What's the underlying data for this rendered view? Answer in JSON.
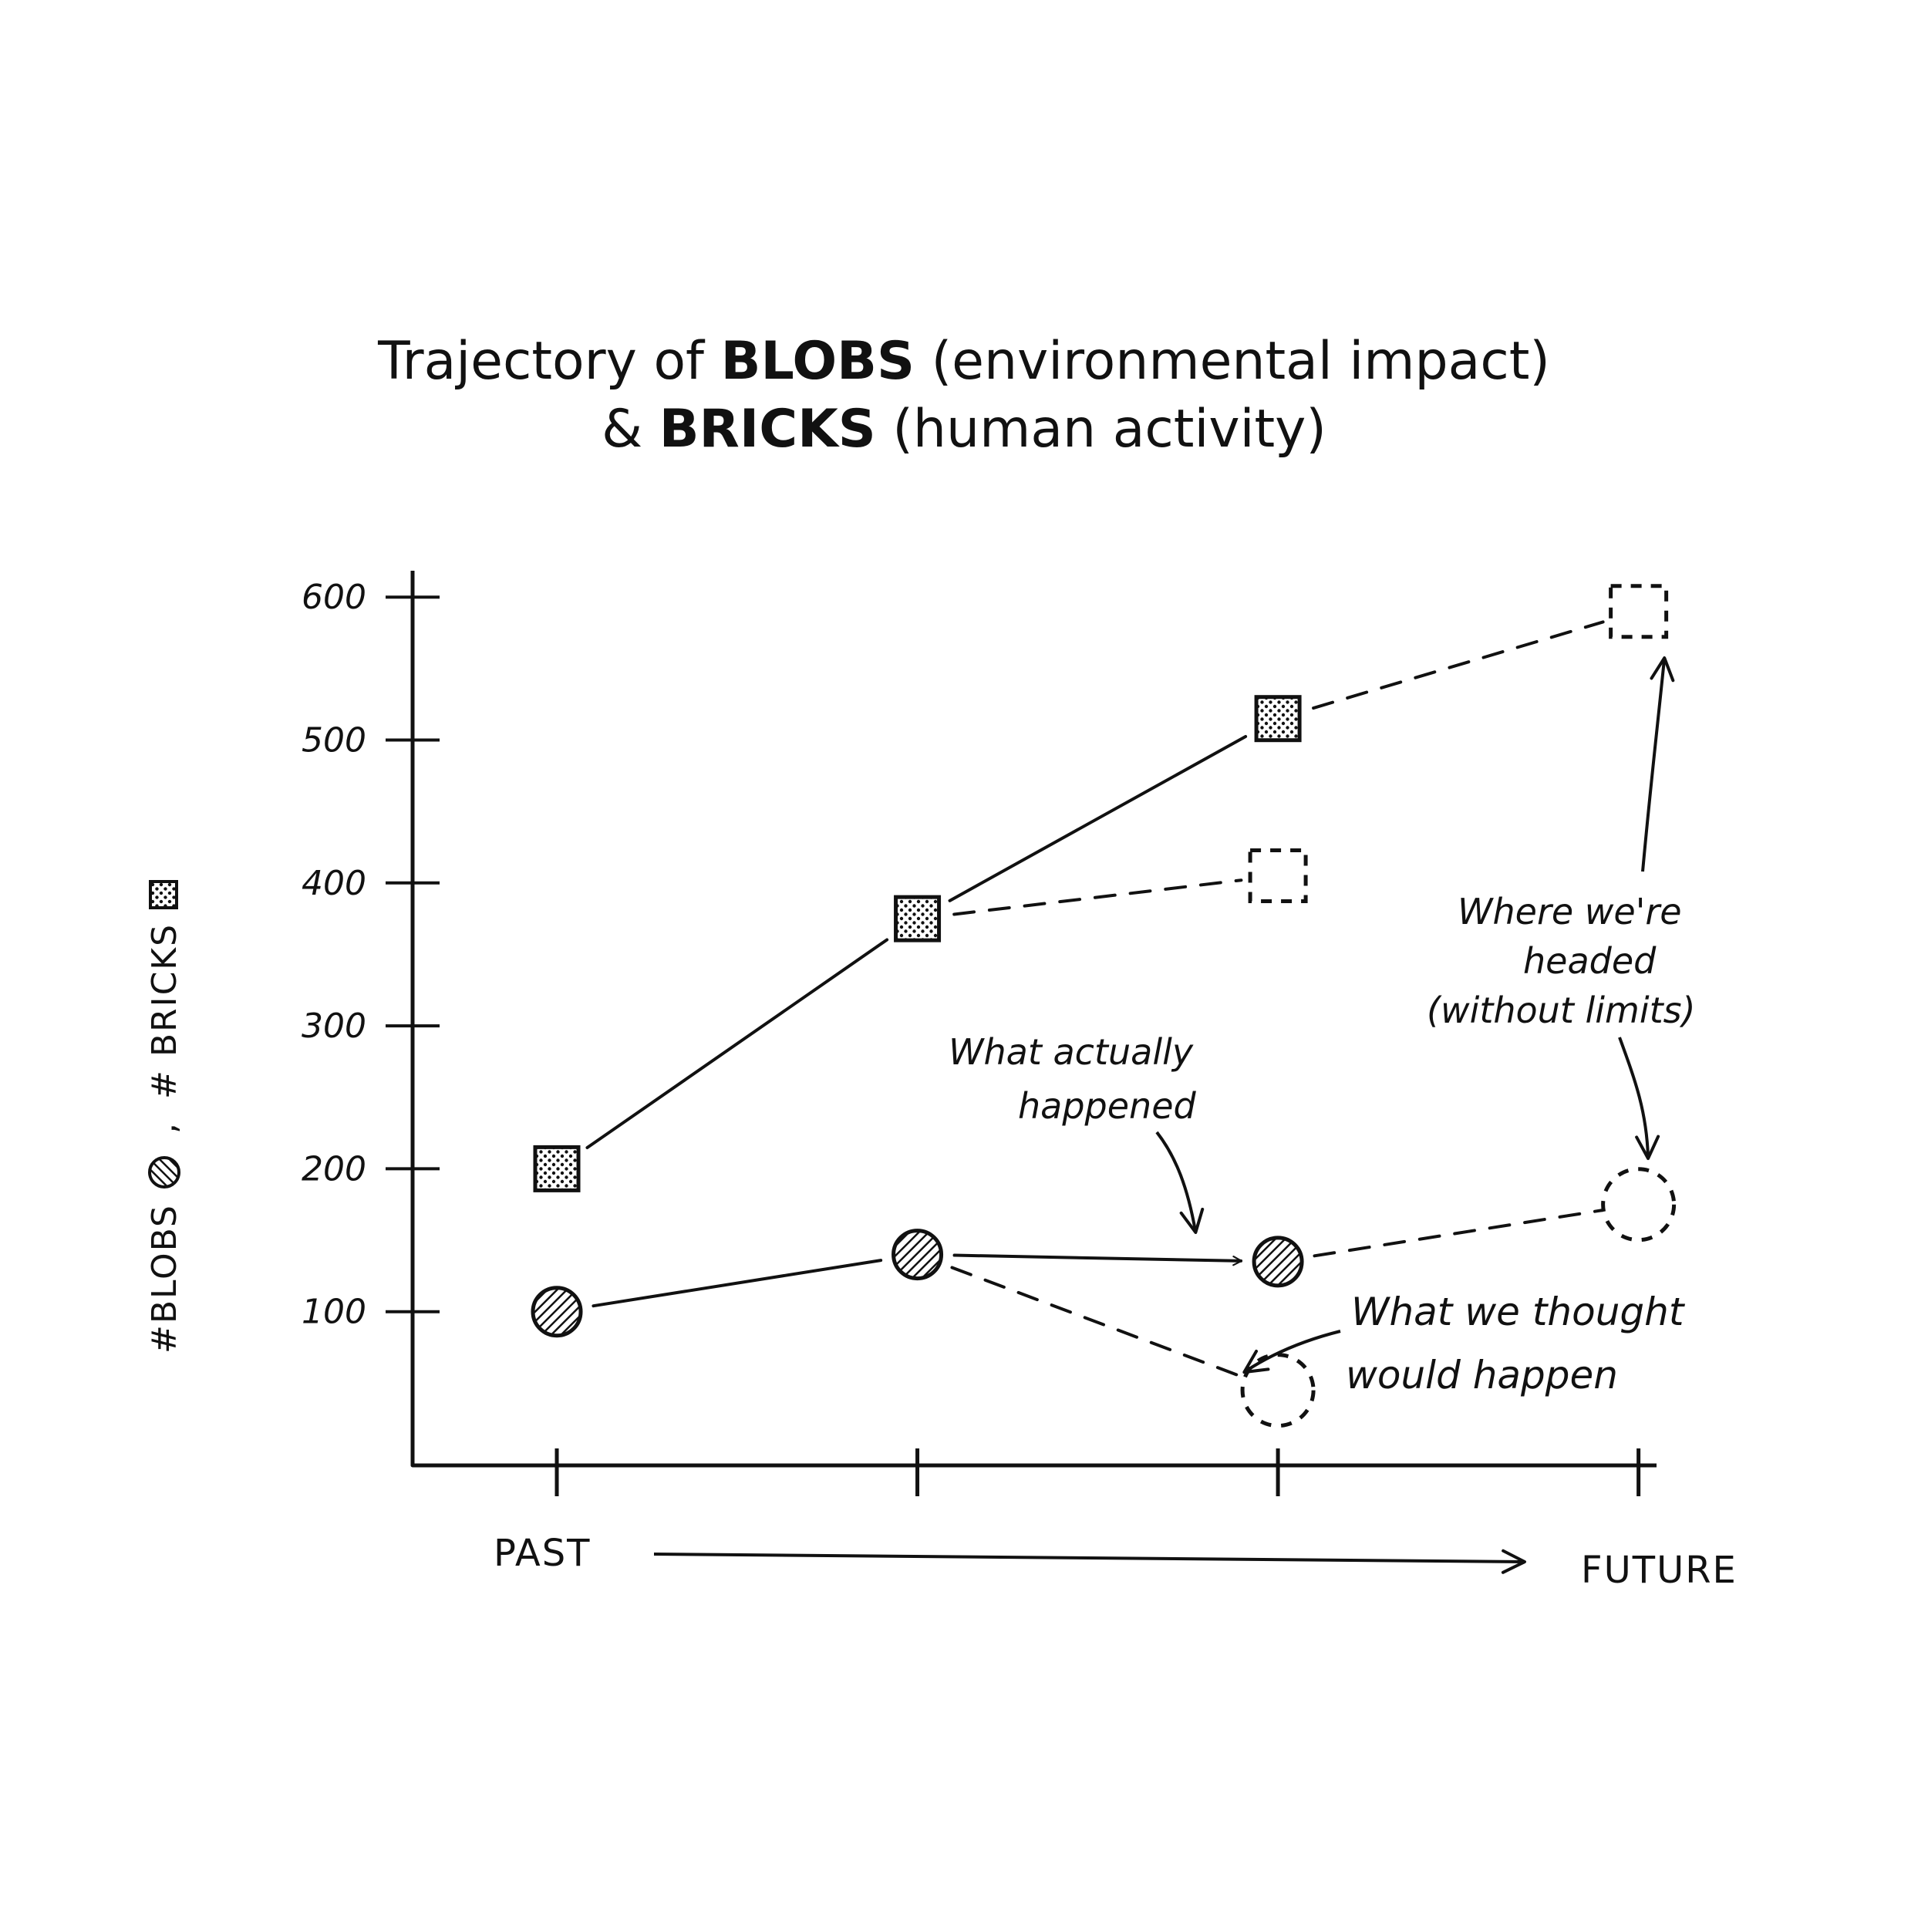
{
  "chart_data": {
    "type": "line",
    "title": {
      "line1_prefix": "Trajectory of ",
      "line1_bold": "BLOBS",
      "line1_suffix": " (environmental impact)",
      "line2_prefix": "& ",
      "line2_bold": "BRICKS",
      "line2_suffix": " (human activity)"
    },
    "ylabel": "#BLOBS",
    "ylabel_sep": ",",
    "ylabel2": "# BRICKS",
    "yticks": [
      100,
      200,
      300,
      400,
      500,
      600
    ],
    "ylim": [
      0,
      600
    ],
    "x": [
      1,
      2,
      3,
      4
    ],
    "xlim": [
      0.6,
      4.05
    ],
    "xlabel_start": "PAST",
    "xlabel_end": "FUTURE",
    "series": [
      {
        "name": "bricks-actual",
        "marker": "dotted-square",
        "style": "solid",
        "x": [
          1,
          2,
          3
        ],
        "values": [
          200,
          375,
          515
        ]
      },
      {
        "name": "bricks-expected",
        "marker": "square-outline",
        "style": "dashed",
        "x": [
          2,
          3
        ],
        "values": [
          375,
          405
        ]
      },
      {
        "name": "bricks-without-limits",
        "marker": "square-outline",
        "style": "dashed",
        "x": [
          3,
          4
        ],
        "values": [
          515,
          590
        ]
      },
      {
        "name": "blobs-actual",
        "marker": "hatched-circle",
        "style": "solid",
        "x": [
          1,
          2,
          3
        ],
        "values": [
          100,
          140,
          135
        ]
      },
      {
        "name": "blobs-expected",
        "marker": "circle-outline",
        "style": "dashed",
        "x": [
          2,
          3
        ],
        "values": [
          140,
          45
        ]
      },
      {
        "name": "blobs-without-limits",
        "marker": "circle-outline",
        "style": "dashed",
        "x": [
          3,
          4
        ],
        "values": [
          135,
          175
        ]
      }
    ],
    "annotations": {
      "actual": [
        "What actually",
        "happened"
      ],
      "thought": [
        "What we thought",
        "would happen"
      ],
      "headed": [
        "Where we're",
        "headed",
        "(without limits)"
      ]
    }
  }
}
